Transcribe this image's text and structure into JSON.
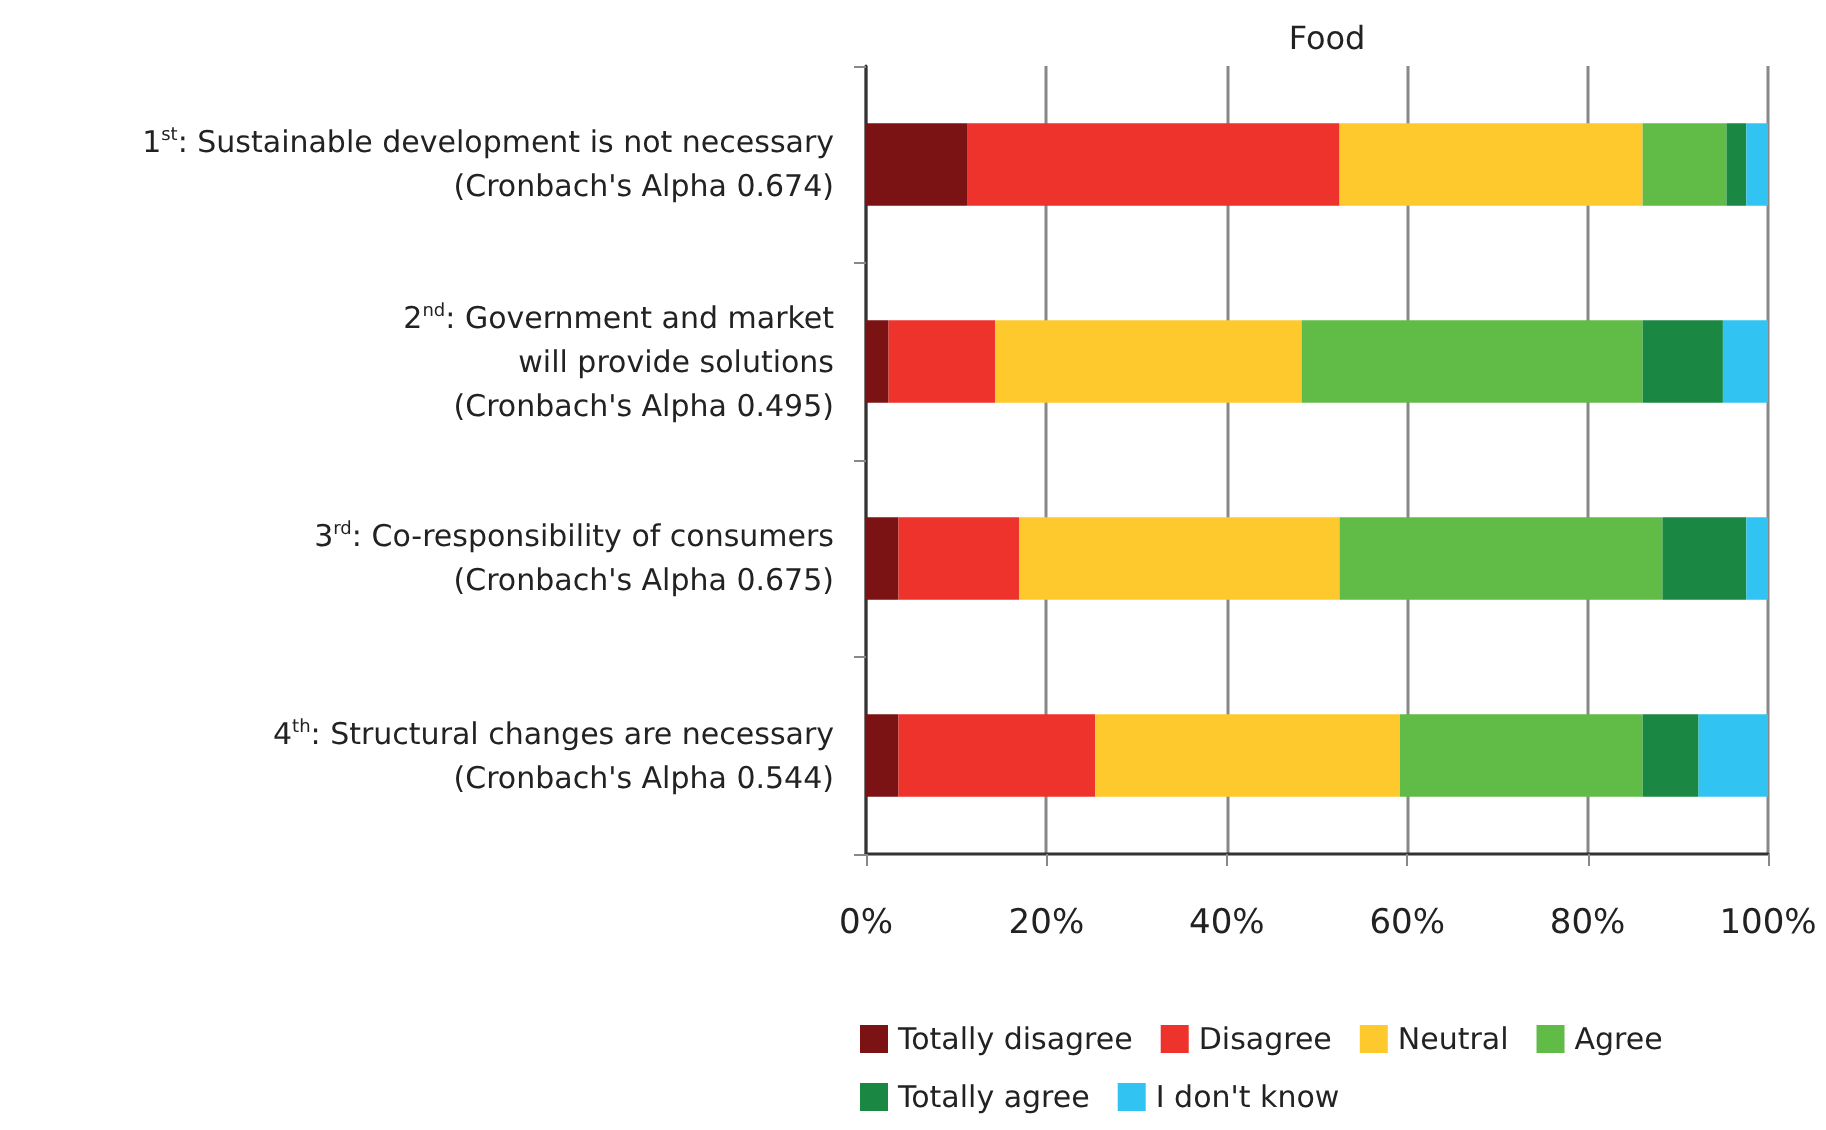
{
  "chart_data": {
    "type": "bar",
    "orientation": "horizontal",
    "stacked": true,
    "title": "Food",
    "categories": [
      "1$^{st}$: Sustainable development is not necessary\n(Cronbach's Alpha 0.674)",
      "2$^{nd}$: Government and market\nwill provide solutions\n(Cronbach's Alpha 0.495)",
      "3$^{rd}$: Co-responsibility of consumers\n(Cronbach's Alpha 0.675)",
      "4$^{th}$: Structural changes are necessary\n(Cronbach's Alpha 0.544)"
    ],
    "series": [
      {
        "name": "Totally disagree",
        "color": "#7b1315",
        "values": [
          11.2,
          2.5,
          3.6,
          3.6
        ]
      },
      {
        "name": "Disagree",
        "color": "#ee322c",
        "values": [
          41.3,
          11.8,
          13.4,
          21.8
        ]
      },
      {
        "name": "Neutral",
        "color": "#fec92d",
        "values": [
          33.6,
          34.0,
          35.5,
          33.8
        ]
      },
      {
        "name": "Agree",
        "color": "#61bb47",
        "values": [
          9.3,
          37.8,
          35.8,
          26.9
        ]
      },
      {
        "name": "Totally agree",
        "color": "#1a8843",
        "values": [
          2.2,
          8.9,
          9.3,
          6.2
        ]
      },
      {
        "name": "I don't know",
        "color": "#31c4f3",
        "values": [
          2.4,
          5.0,
          2.4,
          7.7
        ]
      }
    ],
    "xlim": [
      0,
      100
    ],
    "xticks": [
      {
        "value": 0,
        "label": "0%"
      },
      {
        "value": 20,
        "label": "20%"
      },
      {
        "value": 40,
        "label": "40%"
      },
      {
        "value": 60,
        "label": "60%"
      },
      {
        "value": 80,
        "label": "80%"
      },
      {
        "value": 100,
        "label": "100%"
      }
    ],
    "grid": "x",
    "legend": "bottom"
  }
}
